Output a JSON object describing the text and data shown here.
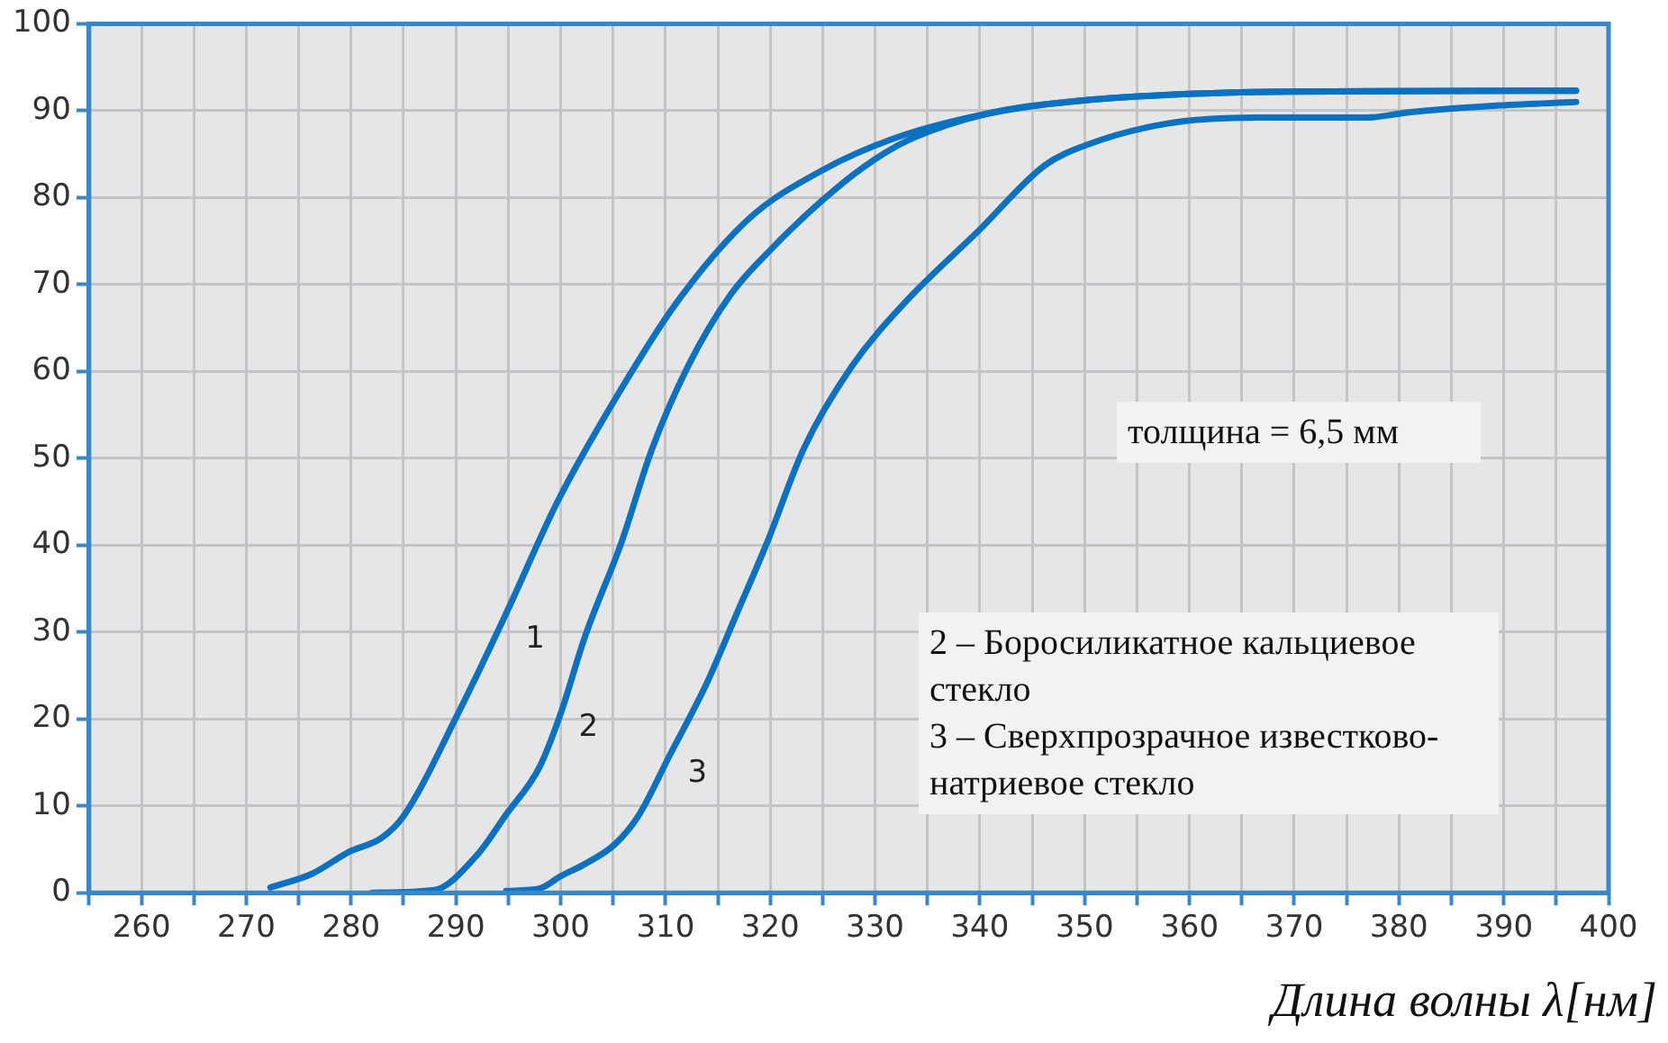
{
  "chart_data": {
    "type": "line",
    "xlabel": "Длина волны λ[нм]",
    "xlim": [
      255,
      400
    ],
    "xticks": [
      {
        "value": 255,
        "label": null
      },
      260,
      {
        "value": 265,
        "label": null
      },
      270,
      {
        "value": 275,
        "label": null
      },
      280,
      {
        "value": 285,
        "label": null
      },
      290,
      {
        "value": 295,
        "label": null
      },
      300,
      {
        "value": 305,
        "label": null
      },
      310,
      {
        "value": 315,
        "label": null
      },
      320,
      {
        "value": 325,
        "label": null
      },
      330,
      {
        "value": 335,
        "label": null
      },
      340,
      {
        "value": 345,
        "label": null
      },
      350,
      {
        "value": 355,
        "label": null
      },
      360,
      {
        "value": 365,
        "label": null
      },
      370,
      {
        "value": 375,
        "label": null
      },
      380,
      {
        "value": 385,
        "label": null
      },
      390,
      {
        "value": 395,
        "label": null
      },
      400
    ],
    "ylim": [
      0,
      100
    ],
    "yticks": [
      0,
      10,
      20,
      30,
      40,
      50,
      60,
      70,
      80,
      90,
      100
    ],
    "grid": true,
    "legend": false,
    "marker": "none",
    "line_style": "solid",
    "series": [
      {
        "name": "1",
        "color": "#0a72c0",
        "x": [
          272.3,
          276.3,
          279.8,
          282.9,
          285.0,
          290.2,
          294.9,
          299.7,
          304.9,
          311.0,
          318.0,
          324.9,
          331.8,
          340.5,
          349.2,
          369.4,
          396.9
        ],
        "values": [
          0.6,
          2.2,
          4.7,
          6.3,
          8.8,
          20.6,
          32.4,
          45,
          56.2,
          67.8,
          77.6,
          83.1,
          86.8,
          89.6,
          91.1,
          92.2,
          92.3
        ]
      },
      {
        "name": "2",
        "color": "#0a72c0",
        "x": [
          282,
          287.9,
          292,
          294.8,
          298,
          300,
          302.3,
          305.8,
          308.7,
          312.2,
          316.2,
          320.2,
          324.9,
          328.9,
          333,
          340.5,
          349.2,
          369.4,
          396.9
        ],
        "values": [
          0,
          0.3,
          4.3,
          9,
          14.5,
          20.6,
          29.4,
          40.3,
          51,
          60.7,
          68.8,
          74.2,
          79.6,
          83.5,
          86.5,
          89.6,
          91.1,
          92.2,
          92.3
        ]
      },
      {
        "name": "3",
        "color": "#0a72c0",
        "x": [
          294.8,
          298,
          300,
          302.3,
          305.2,
          307.5,
          310.4,
          313.9,
          316.8,
          319.7,
          323.2,
          327.8,
          333,
          339.9,
          346.2,
          350.3,
          357.8,
          366.5,
          376.9,
          380.9,
          389.6,
          396.9
        ],
        "values": [
          0.2,
          0.5,
          1.9,
          3.3,
          5.6,
          9,
          15.8,
          24,
          32.1,
          40.3,
          51.1,
          60.6,
          68.1,
          76.2,
          83.7,
          86.1,
          88.5,
          89.2,
          89.2,
          89.8,
          90.6,
          91.0
        ]
      }
    ],
    "annotations": [
      "толщина = 6,5 мм",
      "2 – Боросиликатное кальциевое стекло",
      "3 – Сверхпрозрачное известково-натриевое стекло"
    ]
  }
}
